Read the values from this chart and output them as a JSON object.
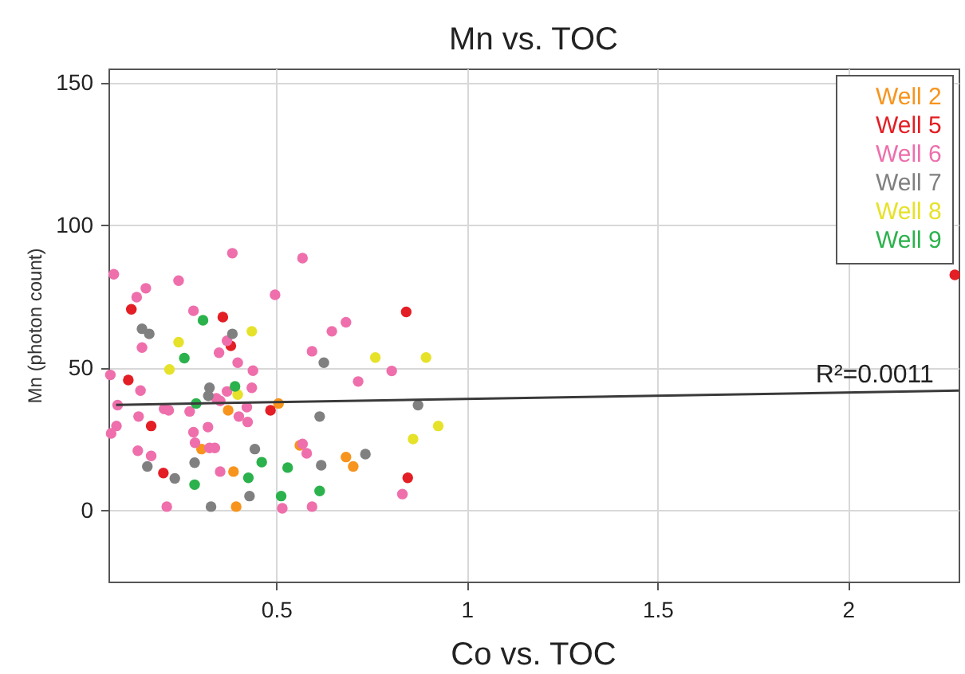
{
  "chart_data": {
    "type": "scatter",
    "title": "Mn vs. TOC",
    "ylabel": "Mn (photon count)",
    "xlim": [
      0.06,
      2.29
    ],
    "ylim": [
      -25,
      155
    ],
    "xticks": [
      0.5,
      1,
      1.5,
      2
    ],
    "yticks": [
      0,
      50,
      100,
      150
    ],
    "grid": true,
    "legend": "top right",
    "marker": "circle",
    "series": [
      {
        "name": "Well 2",
        "color": "#f7941d",
        "x": [
          0.506,
          0.374,
          0.304,
          0.562,
          0.683,
          0.702,
          0.388,
          0.395
        ],
        "values": [
          37.5,
          35.1,
          21.5,
          22.8,
          18.7,
          15.4,
          13.6,
          1.3
        ]
      },
      {
        "name": "Well 5",
        "color": "#e31e24",
        "x": [
          0.12,
          0.36,
          0.381,
          0.112,
          0.485,
          0.172,
          0.204,
          0.841,
          0.845,
          2.28
        ],
        "values": [
          70.5,
          67.8,
          57.7,
          45.7,
          35.1,
          29.6,
          13.1,
          69.6,
          11.4,
          82.6
        ]
      },
      {
        "name": "Well 6",
        "color": "#ee6fac",
        "x": [
          0.074,
          0.385,
          0.569,
          0.244,
          0.158,
          0.134,
          0.497,
          0.283,
          0.683,
          0.646,
          0.371,
          0.148,
          0.35,
          0.594,
          0.399,
          0.439,
          0.065,
          0.436,
          0.144,
          0.371,
          0.084,
          0.343,
          0.206,
          0.218,
          0.273,
          0.353,
          0.423,
          0.402,
          0.425,
          0.139,
          0.081,
          0.067,
          0.321,
          0.283,
          0.287,
          0.325,
          0.339,
          0.137,
          0.172,
          0.569,
          0.58,
          0.353,
          0.213,
          0.516,
          0.594,
          0.715,
          0.803,
          0.831
        ],
        "values": [
          82.8,
          90.2,
          88.5,
          80.6,
          77.9,
          74.8,
          75.6,
          70,
          66,
          62.8,
          59.5,
          57.1,
          55.3,
          55.8,
          51.8,
          49,
          47.5,
          43,
          42,
          41.7,
          36.9,
          39.3,
          35.6,
          35.1,
          34.7,
          38.4,
          36.2,
          32.9,
          31,
          32.9,
          29.6,
          27,
          29.2,
          27.4,
          23.7,
          21.9,
          21.9,
          20.9,
          19.1,
          23.3,
          20,
          13.6,
          1.3,
          0.7,
          1.3,
          45.2,
          48.9,
          5.7
        ]
      },
      {
        "name": "Well 7",
        "color": "#808080",
        "x": [
          0.148,
          0.167,
          0.385,
          0.625,
          0.325,
          0.322,
          0.614,
          0.444,
          0.286,
          0.162,
          0.234,
          0.618,
          0.734,
          0.43,
          0.329,
          0.872
        ],
        "values": [
          63.7,
          61.9,
          61.9,
          51.8,
          43,
          40.2,
          32.9,
          21.5,
          16.7,
          15.4,
          11.2,
          15.8,
          19.7,
          5,
          1.3,
          36.9
        ]
      },
      {
        "name": "Well 8",
        "color": "#e6e22a",
        "x": [
          0.244,
          0.22,
          0.436,
          0.76,
          0.399,
          0.893,
          0.925,
          0.859
        ],
        "values": [
          59,
          49.4,
          62.8,
          53.6,
          40.6,
          53.6,
          29.6,
          25
        ]
      },
      {
        "name": "Well 9",
        "color": "#2bb24c",
        "x": [
          0.308,
          0.259,
          0.392,
          0.29,
          0.462,
          0.53,
          0.427,
          0.286,
          0.513,
          0.614
        ],
        "values": [
          66.7,
          53.4,
          43.5,
          37.5,
          16.9,
          15,
          11.4,
          9,
          5,
          6.8
        ]
      },
      {
        "type": "line",
        "color": "#3a3a3a",
        "marker": "none",
        "x": [
          0.08,
          2.29
        ],
        "values": [
          37,
          42
        ]
      }
    ],
    "annotations": [
      {
        "text": "R²=0.0011",
        "x": 2.07,
        "y": 41.5
      },
      "Co vs. TOC"
    ]
  }
}
